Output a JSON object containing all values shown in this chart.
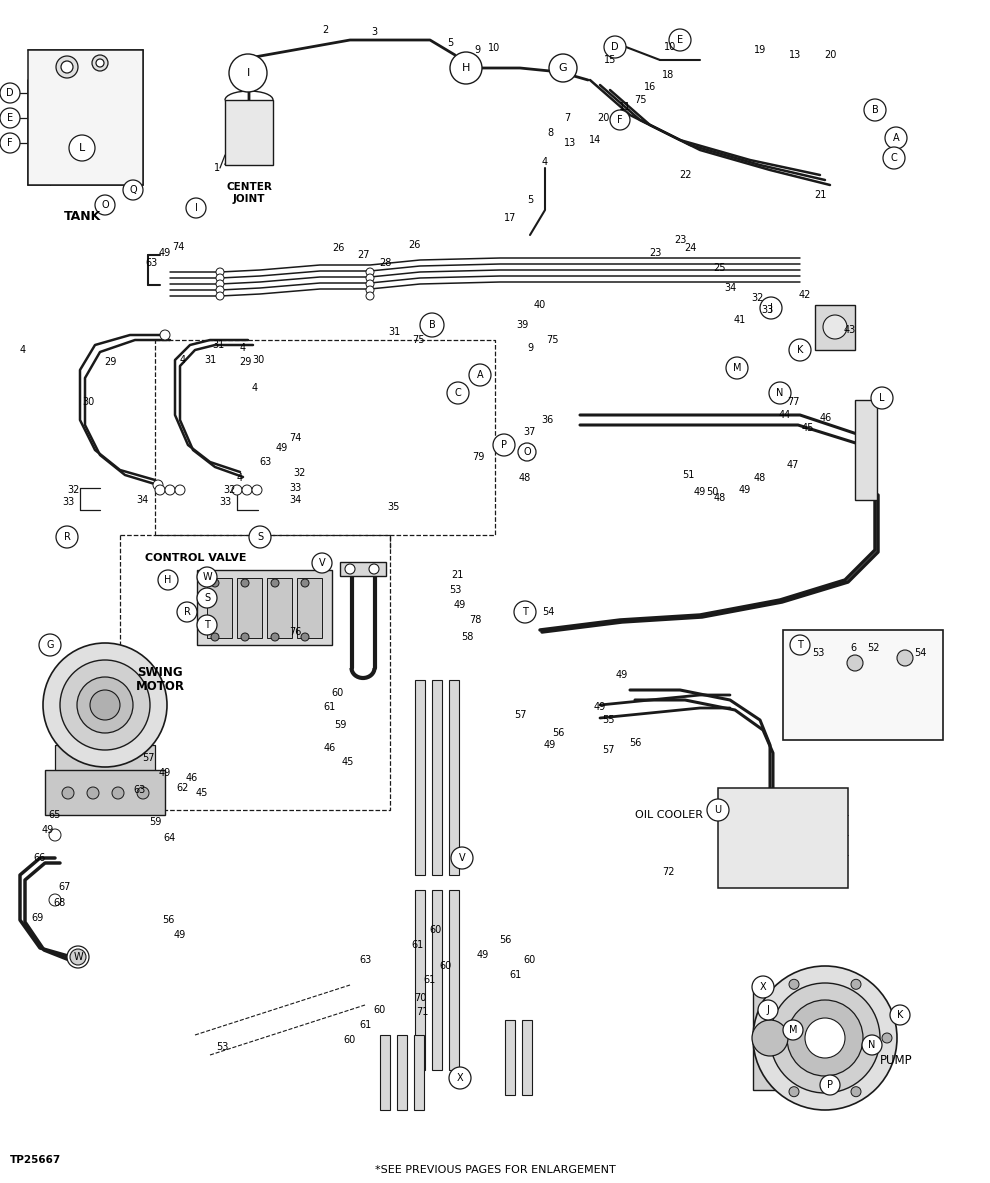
{
  "background_color": "#ffffff",
  "line_color": "#1a1a1a",
  "text_color": "#000000",
  "figsize": [
    9.9,
    11.83
  ],
  "dpi": 100,
  "labels": {
    "tank": "TANK",
    "center_joint": "CENTER\nJOINT",
    "control_valve": "CONTROL VALVE",
    "swing_motor": "SWING\nMOTOR",
    "oil_cooler": "OIL COOLER",
    "pump": "PUMP",
    "footer_note": "*SEE PREVIOUS PAGES FOR ENLARGEMENT",
    "part_number": "TP25667"
  }
}
